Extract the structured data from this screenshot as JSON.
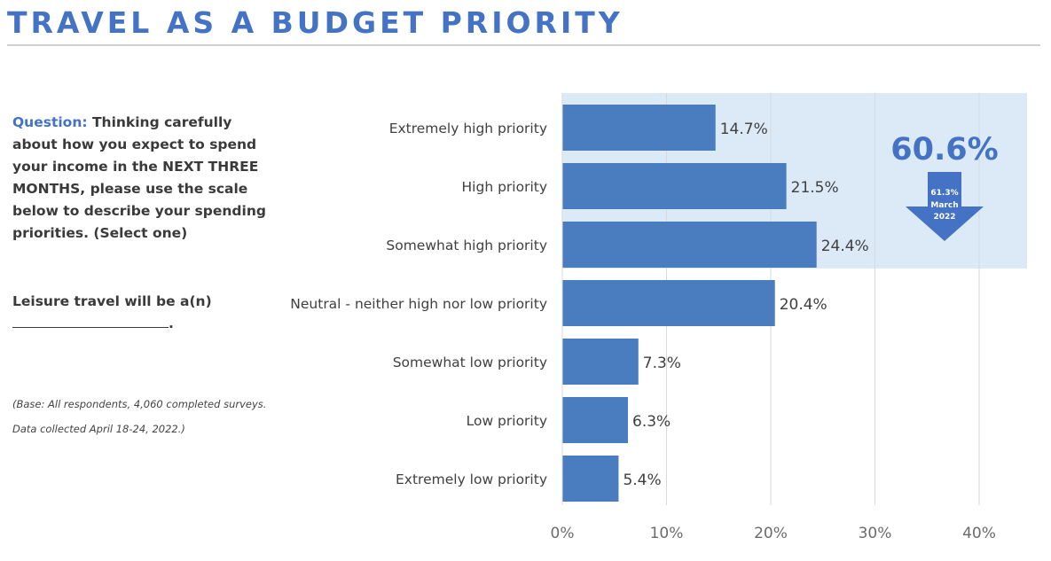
{
  "header": {
    "title": "TRAVEL AS A BUDGET PRIORITY"
  },
  "question": {
    "label": "Question:",
    "text": "Thinking carefully about how you expect to spend your income in the NEXT THREE MONTHS, please use the scale below to describe your spending priorities. (Select one)",
    "prompt": "Leisure travel will be a(n)",
    "prompt_end": "."
  },
  "base_note": {
    "line1": "(Base: All respondents, 4,060 completed surveys.",
    "line2": "Data collected April 18-24, 2022.)"
  },
  "colors": {
    "bar": "#4a7cc0",
    "highlight": "#dce9f6",
    "accent": "#4472c4",
    "grid": "#d9d9d9"
  },
  "chart_data": {
    "type": "bar",
    "orientation": "horizontal",
    "categories": [
      "Extremely high priority",
      "High priority",
      "Somewhat high priority",
      "Neutral - neither high nor low priority",
      "Somewhat low priority",
      "Low priority",
      "Extremely low priority"
    ],
    "values": [
      14.7,
      21.5,
      24.4,
      20.4,
      7.3,
      6.3,
      5.4
    ],
    "value_labels": [
      "14.7%",
      "21.5%",
      "24.4%",
      "20.4%",
      "7.3%",
      "6.3%",
      "5.4%"
    ],
    "xlim": [
      0,
      45
    ],
    "xticks": [
      0,
      10,
      20,
      30,
      40
    ],
    "xtick_labels": [
      "0%",
      "10%",
      "20%",
      "30%",
      "40%"
    ],
    "grid": true,
    "highlight_categories": [
      "Extremely high priority",
      "High priority",
      "Somewhat high priority"
    ],
    "callout": {
      "total": "60.6%",
      "previous_value": "61.3%",
      "previous_period_line1": "March",
      "previous_period_line2": "2022",
      "direction": "down"
    }
  }
}
